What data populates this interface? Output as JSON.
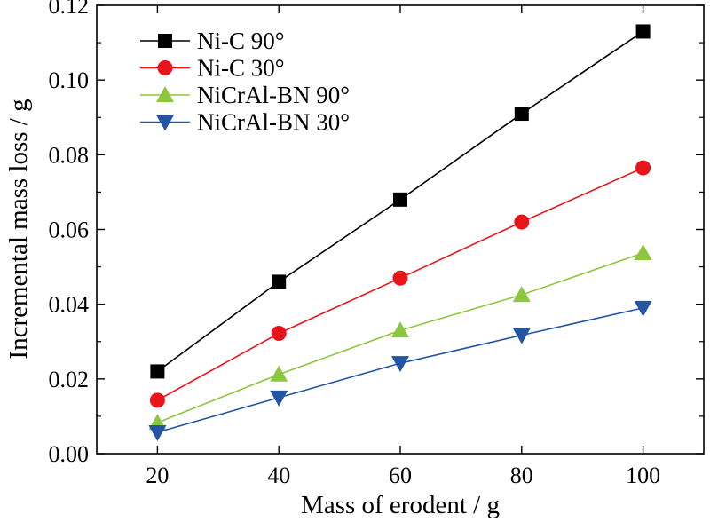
{
  "chart_data": {
    "type": "line",
    "xlabel": "Mass of erodent / g",
    "ylabel": "Incremental mass loss / g",
    "xlim": [
      10,
      110
    ],
    "ylim": [
      0.0,
      0.12
    ],
    "xticks": [
      20,
      40,
      60,
      80,
      100
    ],
    "yticks": [
      0.0,
      0.02,
      0.04,
      0.06,
      0.08,
      0.1,
      0.12
    ],
    "xtick_labels": [
      "20",
      "40",
      "60",
      "80",
      "100"
    ],
    "ytick_labels": [
      "0.00",
      "0.02",
      "0.04",
      "0.06",
      "0.08",
      "0.10",
      "0.12"
    ],
    "grid": false,
    "legend_position": "top-left",
    "x": [
      20,
      40,
      60,
      80,
      100
    ],
    "series": [
      {
        "name": "Ni-C 90°",
        "marker": "square",
        "color": "#000000",
        "line_color": "#000000",
        "values": [
          0.022,
          0.046,
          0.068,
          0.091,
          0.113
        ]
      },
      {
        "name": "Ni-C 30°",
        "marker": "circle",
        "color": "#e8141a",
        "line_color": "#e8141a",
        "values": [
          0.0143,
          0.0322,
          0.047,
          0.062,
          0.0765
        ]
      },
      {
        "name": "NiCrAl-BN 90°",
        "marker": "triangle-up",
        "color": "#8dc63f",
        "line_color": "#8dc63f",
        "values": [
          0.0083,
          0.0212,
          0.033,
          0.0425,
          0.0537
        ]
      },
      {
        "name": "NiCrAl-BN 30°",
        "marker": "triangle-down",
        "color": "#2255a4",
        "line_color": "#2255a4",
        "values": [
          0.0057,
          0.015,
          0.0242,
          0.0317,
          0.039
        ]
      }
    ]
  }
}
